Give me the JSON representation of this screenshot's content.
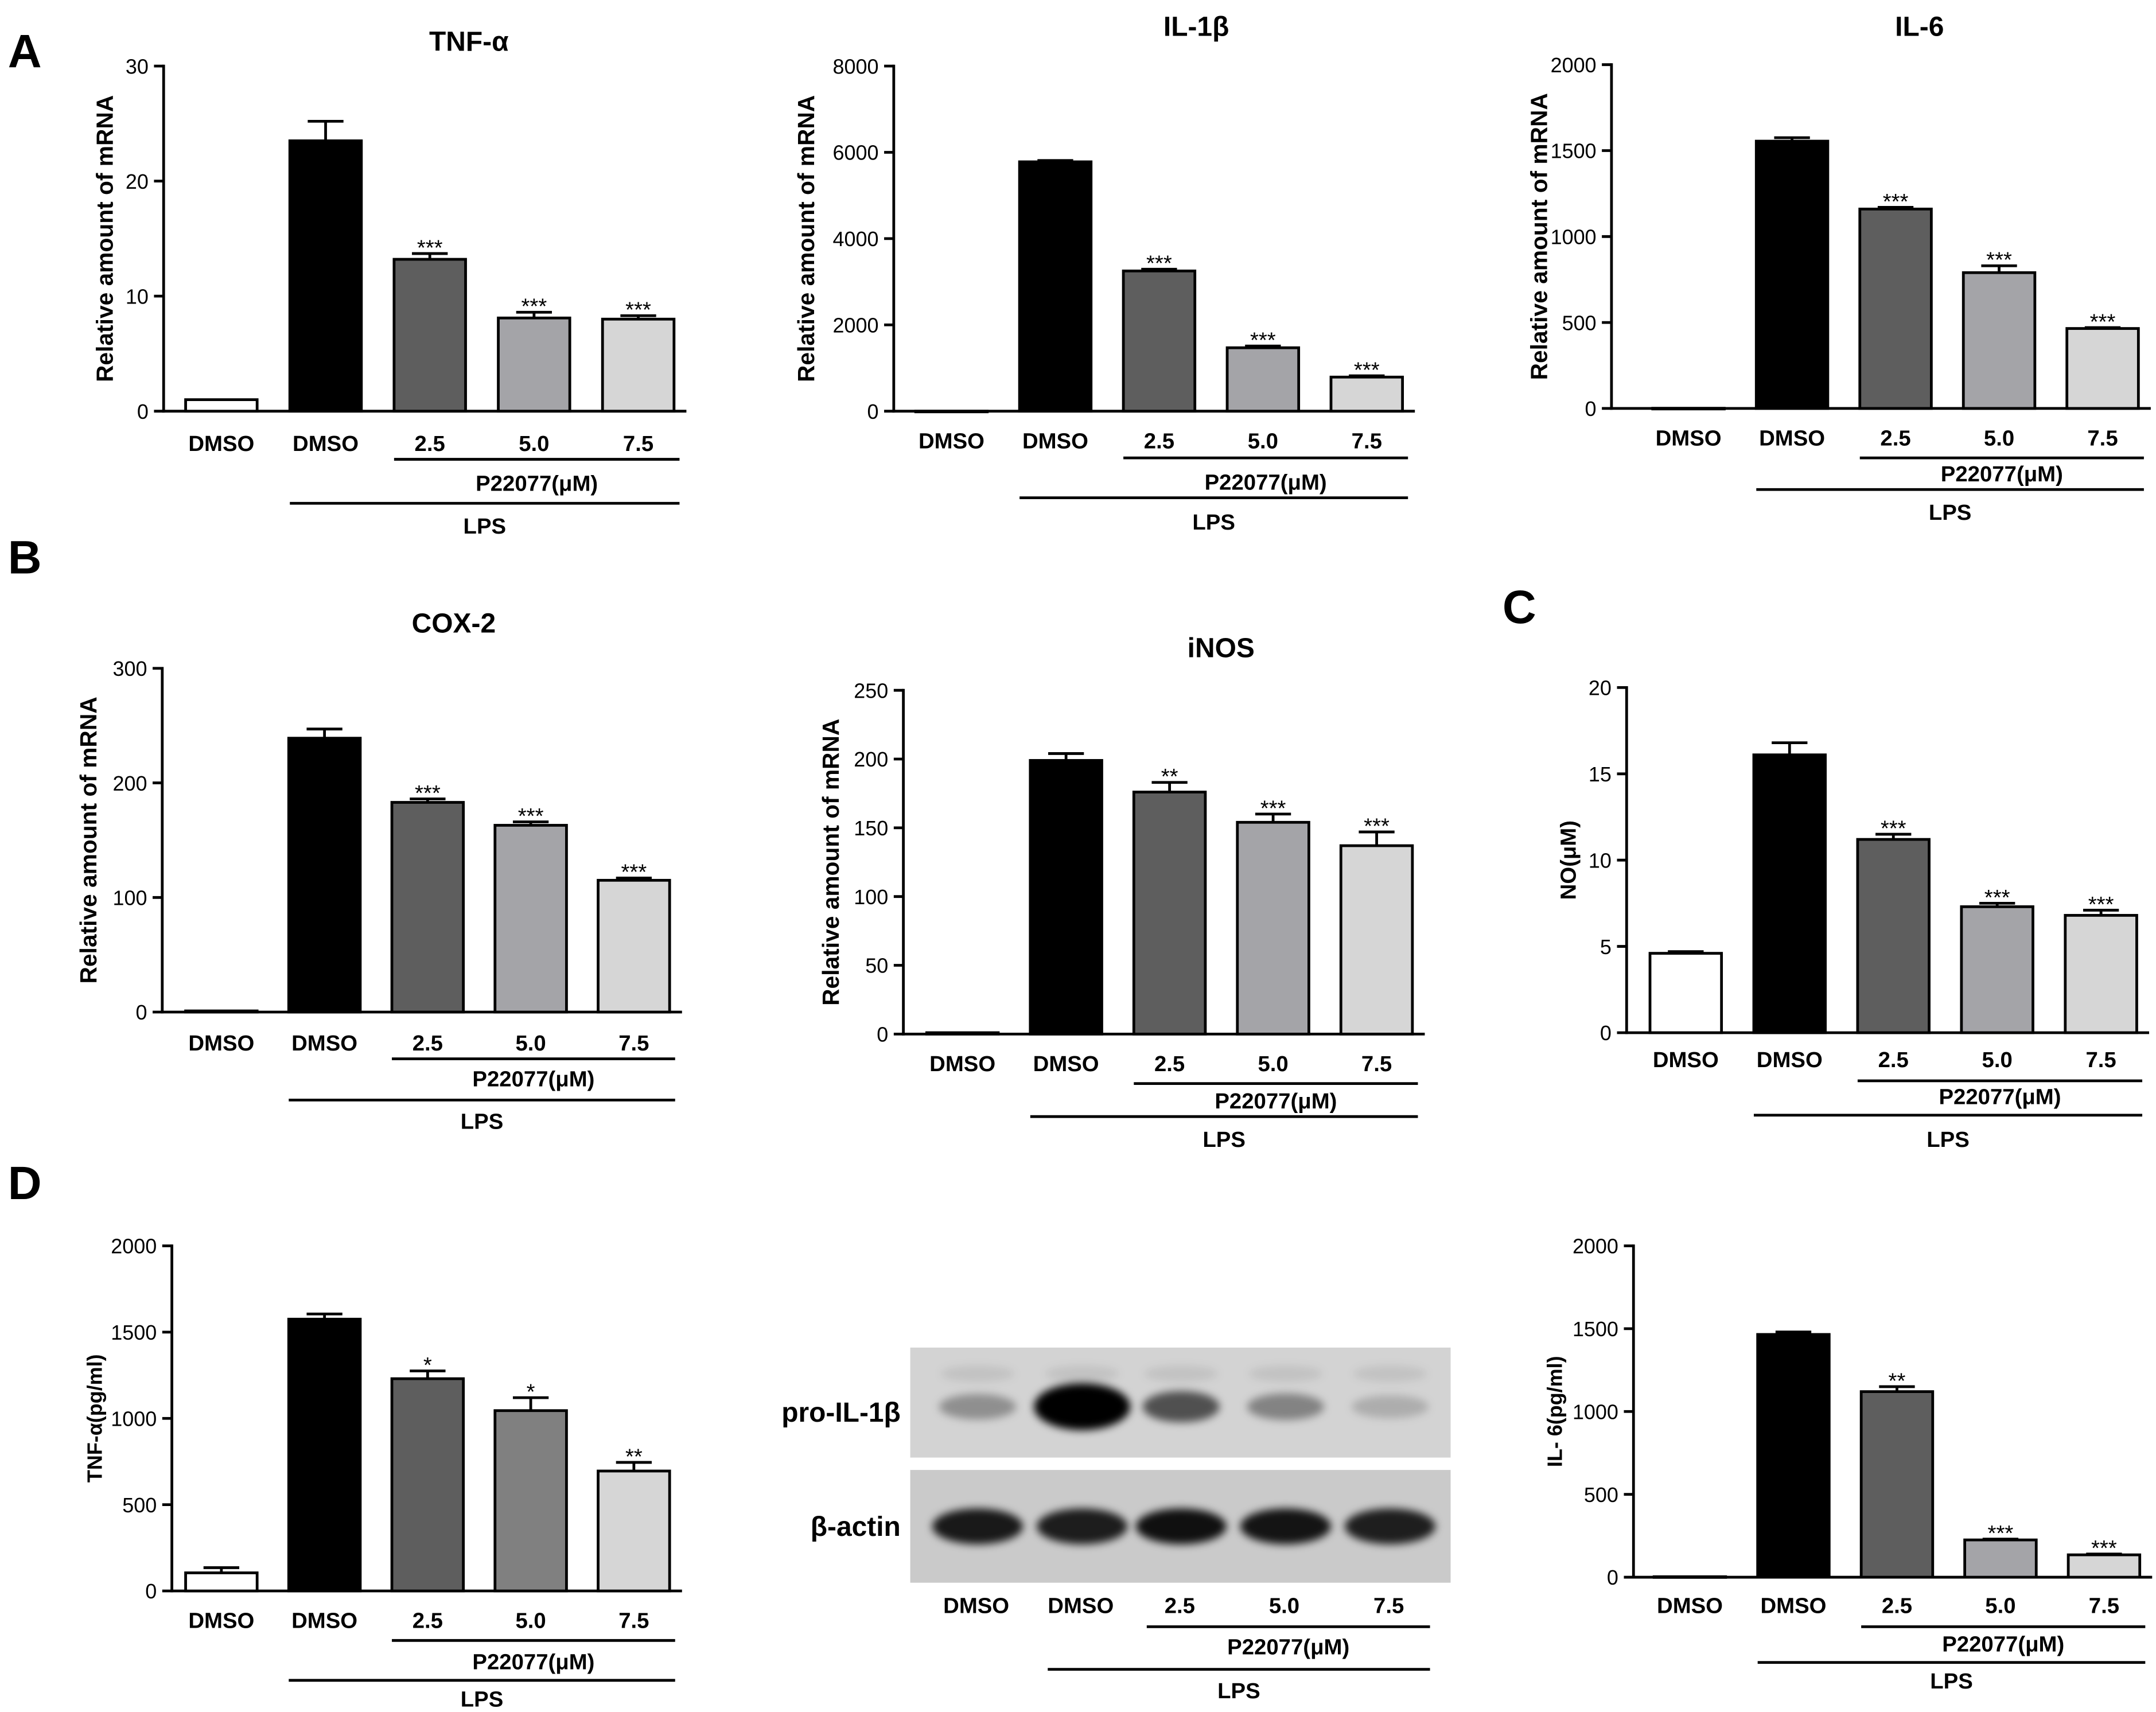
{
  "panel_labels": [
    "A",
    "B",
    "C",
    "D"
  ],
  "chart_data": [
    {
      "type": "bar",
      "title": "TNF-α",
      "ylabel": "Relative amount of mRNA",
      "categories": [
        "DMSO",
        "DMSO",
        "2.5",
        "5.0",
        "7.5"
      ],
      "values": [
        1,
        23.5,
        13.2,
        8.1,
        8.0
      ],
      "errors": [
        0,
        1.7,
        0.5,
        0.5,
        0.3
      ],
      "significance": [
        "",
        "",
        "***",
        "***",
        "***"
      ],
      "bar_colors": [
        "#ffffff",
        "#000000",
        "#5e5e5e",
        "#a4a4a8",
        "#d6d6d6"
      ],
      "ylim": [
        0,
        30
      ],
      "yticks": [
        0,
        10,
        20,
        30
      ],
      "groups": [
        {
          "label": "P22077(μM)",
          "from": 2,
          "to": 4
        },
        {
          "label": "LPS",
          "from": 1,
          "to": 4
        }
      ]
    },
    {
      "type": "bar",
      "title": "IL-1β",
      "ylabel": "Relative amount of mRNA",
      "categories": [
        "DMSO",
        "DMSO",
        "2.5",
        "5.0",
        "7.5"
      ],
      "values": [
        1,
        5780,
        3250,
        1470,
        790
      ],
      "errors": [
        0,
        30,
        40,
        40,
        30
      ],
      "significance": [
        "",
        "",
        "***",
        "***",
        "***"
      ],
      "bar_colors": [
        "#ffffff",
        "#000000",
        "#5e5e5e",
        "#a4a4a8",
        "#d6d6d6"
      ],
      "ylim": [
        0,
        8000
      ],
      "yticks": [
        0,
        2000,
        4000,
        6000,
        8000
      ],
      "groups": [
        {
          "label": "P22077(μM)",
          "from": 2,
          "to": 4
        },
        {
          "label": "LPS",
          "from": 1,
          "to": 4
        }
      ]
    },
    {
      "type": "bar",
      "title": "IL-6",
      "ylabel": "Relative amount of mRNA",
      "categories": [
        "DMSO",
        "DMSO",
        "2.5",
        "5.0",
        "7.5"
      ],
      "values": [
        1,
        1555,
        1160,
        790,
        465
      ],
      "errors": [
        0,
        20,
        10,
        40,
        5
      ],
      "significance": [
        "",
        "",
        "***",
        "***",
        "***"
      ],
      "bar_colors": [
        "#ffffff",
        "#000000",
        "#5e5e5e",
        "#a4a4a8",
        "#d6d6d6"
      ],
      "ylim": [
        0,
        2000
      ],
      "yticks": [
        0,
        500,
        1000,
        1500,
        2000
      ],
      "groups": [
        {
          "label": "P22077(μM)",
          "from": 2,
          "to": 4
        },
        {
          "label": "LPS",
          "from": 1,
          "to": 4
        }
      ]
    },
    {
      "type": "bar",
      "title": "COX-2",
      "ylabel": "Relative amount of mRNA",
      "categories": [
        "DMSO",
        "DMSO",
        "2.5",
        "5.0",
        "7.5"
      ],
      "values": [
        1,
        239,
        183,
        163,
        115
      ],
      "errors": [
        0,
        8,
        3,
        3,
        2
      ],
      "significance": [
        "",
        "",
        "***",
        "***",
        "***"
      ],
      "bar_colors": [
        "#ffffff",
        "#000000",
        "#5e5e5e",
        "#a4a4a8",
        "#d6d6d6"
      ],
      "ylim": [
        0,
        300
      ],
      "yticks": [
        0,
        100,
        200,
        300
      ],
      "groups": [
        {
          "label": "P22077(μM)",
          "from": 2,
          "to": 4
        },
        {
          "label": "LPS",
          "from": 1,
          "to": 4
        }
      ]
    },
    {
      "type": "bar",
      "title": "iNOS",
      "ylabel": "Relative amount of mRNA",
      "categories": [
        "DMSO",
        "DMSO",
        "2.5",
        "5.0",
        "7.5"
      ],
      "values": [
        1,
        199,
        176,
        154,
        137
      ],
      "errors": [
        0,
        5,
        7,
        6,
        10
      ],
      "significance": [
        "",
        "",
        "**",
        "***",
        "***"
      ],
      "bar_colors": [
        "#ffffff",
        "#000000",
        "#5e5e5e",
        "#a4a4a8",
        "#d6d6d6"
      ],
      "ylim": [
        0,
        250
      ],
      "yticks": [
        0,
        50,
        100,
        150,
        200,
        250
      ],
      "groups": [
        {
          "label": "P22077(μM)",
          "from": 2,
          "to": 4
        },
        {
          "label": "LPS",
          "from": 1,
          "to": 4
        }
      ]
    },
    {
      "type": "bar",
      "ylabel": "NO(μM)",
      "categories": [
        "DMSO",
        "DMSO",
        "2.5",
        "5.0",
        "7.5"
      ],
      "values": [
        4.6,
        16.1,
        11.2,
        7.3,
        6.8
      ],
      "errors": [
        0.1,
        0.7,
        0.3,
        0.2,
        0.3
      ],
      "significance": [
        "",
        "",
        "***",
        "***",
        "***"
      ],
      "bar_colors": [
        "#ffffff",
        "#000000",
        "#5e5e5e",
        "#a4a4a8",
        "#d6d6d6"
      ],
      "ylim": [
        0,
        20
      ],
      "yticks": [
        0,
        5,
        10,
        15,
        20
      ],
      "groups": [
        {
          "label": "P22077(μM)",
          "from": 2,
          "to": 4
        },
        {
          "label": "LPS",
          "from": 1,
          "to": 4
        }
      ]
    },
    {
      "type": "bar",
      "ylabel": "TNF-α(pg/ml)",
      "categories": [
        "DMSO",
        "DMSO",
        "2.5",
        "5.0",
        "7.5"
      ],
      "values": [
        105,
        1575,
        1230,
        1045,
        695
      ],
      "errors": [
        30,
        30,
        45,
        75,
        50
      ],
      "significance": [
        "",
        "",
        "*",
        "*",
        "**"
      ],
      "bar_colors": [
        "#ffffff",
        "#000000",
        "#5e5e5e",
        "#808080",
        "#d6d6d6"
      ],
      "ylim": [
        0,
        2000
      ],
      "yticks": [
        0,
        500,
        1000,
        1500,
        2000
      ],
      "groups": [
        {
          "label": "P22077(μM)",
          "from": 2,
          "to": 4
        },
        {
          "label": "LPS",
          "from": 1,
          "to": 4
        }
      ]
    },
    {
      "type": "bar",
      "ylabel": "IL- 6(pg/ml)",
      "categories": [
        "DMSO",
        "DMSO",
        "2.5",
        "5.0",
        "7.5"
      ],
      "values": [
        3,
        1465,
        1120,
        225,
        135
      ],
      "errors": [
        0,
        15,
        30,
        5,
        5
      ],
      "significance": [
        "",
        "",
        "**",
        "***",
        "***"
      ],
      "bar_colors": [
        "#ffffff",
        "#000000",
        "#5e5e5e",
        "#a4a4a8",
        "#d6d6d6"
      ],
      "ylim": [
        0,
        2000
      ],
      "yticks": [
        0,
        500,
        1000,
        1500,
        2000
      ],
      "groups": [
        {
          "label": "P22077(μM)",
          "from": 2,
          "to": 4
        },
        {
          "label": "LPS",
          "from": 1,
          "to": 4
        }
      ]
    }
  ],
  "western_blot": {
    "rows": [
      {
        "label": "pro-IL-1β",
        "band_intensity": [
          0.32,
          1.0,
          0.62,
          0.38,
          0.18
        ]
      },
      {
        "label": "β-actin",
        "band_intensity": [
          0.88,
          0.86,
          0.92,
          0.9,
          0.85
        ]
      }
    ],
    "lanes": [
      "DMSO",
      "DMSO",
      "2.5",
      "5.0",
      "7.5"
    ],
    "groups": [
      {
        "label": "P22077(μM)",
        "from": 2,
        "to": 4
      },
      {
        "label": "LPS",
        "from": 1,
        "to": 4
      }
    ]
  }
}
